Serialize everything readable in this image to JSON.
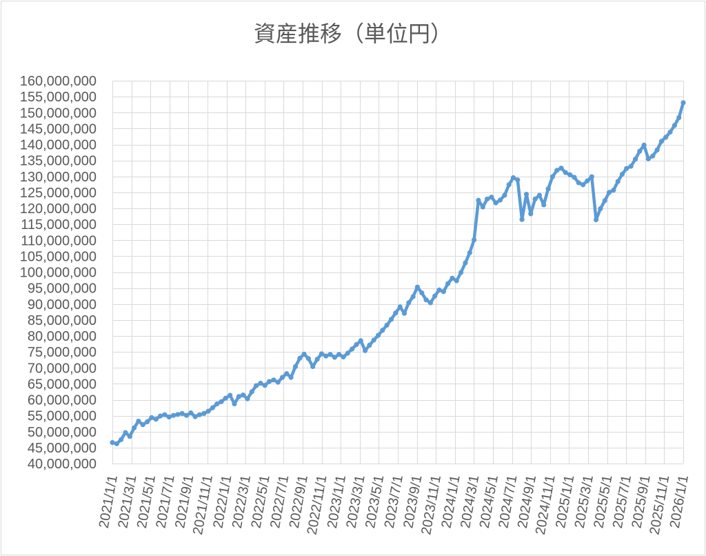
{
  "chart_data": {
    "type": "line",
    "title": "資産推移（単位円）",
    "xlabel": "",
    "ylabel": "",
    "legend": "none",
    "grid": true,
    "markers": true,
    "colors": {
      "line": "#5B9BD5",
      "grid": "#D9D9D9",
      "axis_text": "#595959",
      "title_text": "#595959",
      "background": "#FFFFFF",
      "border": "#D9D9D9"
    },
    "y_axis": {
      "min": 40000000,
      "max": 160000000,
      "step": 5000000,
      "tick_labels": [
        "160,000,000",
        "155,000,000",
        "150,000,000",
        "145,000,000",
        "140,000,000",
        "135,000,000",
        "130,000,000",
        "125,000,000",
        "120,000,000",
        "115,000,000",
        "110,000,000",
        "105,000,000",
        "100,000,000",
        "95,000,000",
        "90,000,000",
        "85,000,000",
        "80,000,000",
        "75,000,000",
        "70,000,000",
        "65,000,000",
        "60,000,000",
        "55,000,000",
        "50,000,000",
        "45,000,000",
        "40,000,000"
      ]
    },
    "x_axis": {
      "start": "2021/1/1",
      "end": "2026/1/1",
      "tick_interval": "2 months",
      "tick_labels": [
        "2021/1/1",
        "2021/3/1",
        "2021/5/1",
        "2021/7/1",
        "2021/9/1",
        "2021/11/1",
        "2022/1/1",
        "2022/3/1",
        "2022/5/1",
        "2022/7/1",
        "2022/9/1",
        "2022/11/1",
        "2023/1/1",
        "2023/3/1",
        "2023/5/1",
        "2023/7/1",
        "2023/9/1",
        "2023/11/1",
        "2024/1/1",
        "2024/3/1",
        "2024/5/1",
        "2024/7/1",
        "2024/9/1",
        "2024/11/1",
        "2025/1/1",
        "2025/3/1",
        "2025/5/1",
        "2025/7/1",
        "2025/9/1",
        "2025/11/1",
        "2026/1/1"
      ]
    },
    "series": [
      {
        "name": "資産",
        "unit": "million JPY",
        "start_date": "2021/1/1",
        "end_date": "2026/1/1",
        "interval": "evenly spaced (~2 weeks)",
        "values": [
          46.6,
          46.2,
          47.5,
          49.7,
          48.5,
          51.2,
          53.3,
          52.2,
          53.1,
          54.4,
          53.9,
          54.9,
          55.3,
          54.6,
          55.1,
          55.4,
          55.7,
          55.1,
          55.9,
          54.7,
          55.3,
          55.7,
          56.4,
          57.5,
          58.7,
          59.4,
          60.5,
          61.4,
          58.7,
          61.0,
          61.5,
          60.3,
          62.5,
          64.4,
          65.2,
          64.5,
          65.7,
          66.2,
          65.5,
          67.0,
          68.2,
          67.0,
          70.4,
          73.0,
          74.3,
          72.9,
          70.4,
          72.7,
          74.4,
          73.7,
          74.2,
          73.3,
          74.2,
          73.4,
          74.6,
          75.9,
          77.3,
          78.5,
          75.4,
          77.1,
          78.7,
          80.2,
          81.8,
          83.4,
          85.2,
          87.2,
          89.1,
          87.1,
          90.4,
          92.3,
          95.3,
          93.5,
          91.3,
          90.4,
          92.5,
          94.4,
          93.9,
          96.4,
          98.1,
          97.3,
          99.9,
          102.9,
          106.1,
          110.1,
          122.5,
          120.4,
          122.9,
          123.5,
          121.7,
          122.6,
          124.1,
          127.4,
          129.6,
          128.9,
          116.5,
          124.4,
          118.3,
          122.9,
          124.1,
          121.1,
          126.1,
          129.9,
          131.9,
          132.6,
          131.2,
          130.5,
          129.7,
          128.0,
          127.4,
          128.6,
          129.9,
          116.4,
          119.9,
          122.4,
          125.0,
          125.7,
          128.4,
          130.7,
          132.5,
          133.2,
          135.4,
          137.9,
          139.8,
          135.5,
          136.4,
          138.3,
          141.0,
          142.3,
          143.9,
          146.0,
          148.4,
          153.1
        ]
      }
    ]
  }
}
